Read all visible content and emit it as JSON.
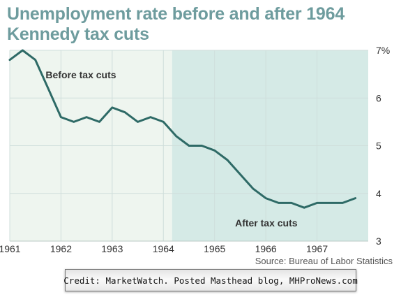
{
  "chart_data": {
    "type": "line",
    "title_lines": [
      "Unemployment rate before and after 1964",
      "Kennedy tax cuts"
    ],
    "source": "Source: Bureau of Labor Statistics",
    "x_tick_labels": [
      "1961",
      "1962",
      "1963",
      "1964",
      "1965",
      "1966",
      "1967"
    ],
    "y_tick_labels": [
      "7%",
      "6",
      "5",
      "4",
      "3"
    ],
    "ylim": [
      3,
      7
    ],
    "xlim": [
      1961,
      1968
    ],
    "grid": true,
    "regions": [
      {
        "label": "Before tax cuts",
        "x_range": [
          1961,
          1964.17
        ],
        "color": "#eef5ef"
      },
      {
        "label": "After tax cuts",
        "x_range": [
          1964.17,
          1968
        ],
        "color": "#d5eae6"
      }
    ],
    "line_color": "#2e6a66",
    "series": [
      {
        "x": [
          1961.0,
          1961.25,
          1961.5,
          1961.75,
          1962.0,
          1962.25,
          1962.5,
          1962.75,
          1963.0,
          1963.25,
          1963.5,
          1963.75,
          1964.0,
          1964.25,
          1964.5,
          1964.75,
          1965.0,
          1965.25,
          1965.5,
          1965.75,
          1966.0,
          1966.25,
          1966.5,
          1966.75,
          1967.0,
          1967.25,
          1967.5,
          1967.75
        ],
        "values": [
          6.8,
          7.0,
          6.8,
          6.2,
          5.6,
          5.5,
          5.6,
          5.5,
          5.8,
          5.7,
          5.5,
          5.6,
          5.5,
          5.2,
          5.0,
          5.0,
          4.9,
          4.7,
          4.4,
          4.1,
          3.9,
          3.8,
          3.8,
          3.7,
          3.8,
          3.8,
          3.8,
          3.9
        ]
      }
    ]
  },
  "credit": "Credit: MarketWatch. Posted Masthead blog, MHProNews.com"
}
